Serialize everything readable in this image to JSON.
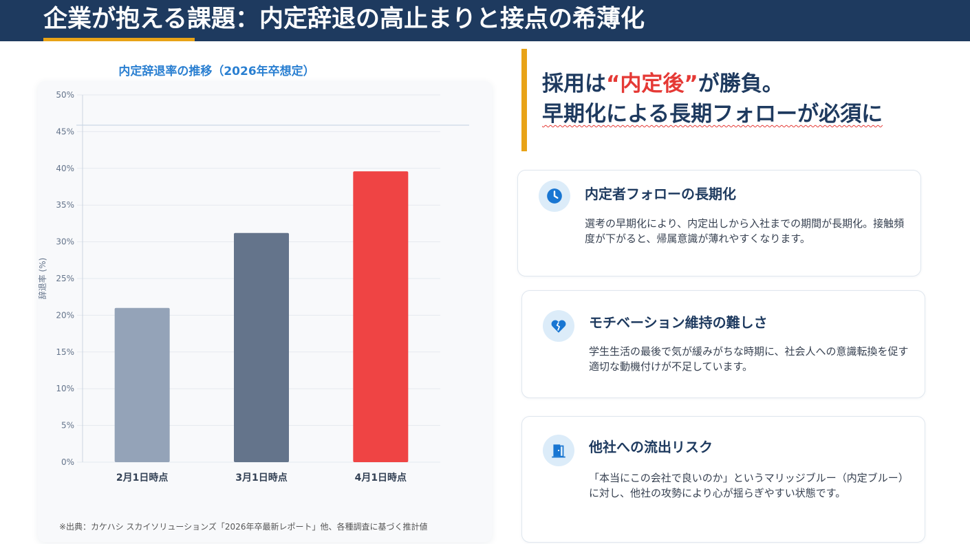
{
  "page_title": "企業が抱える課題：内定辞退の高止まりと接点の希薄化",
  "chart_data": {
    "type": "bar",
    "title": "内定辞退率の推移（2026年卒想定）",
    "xlabel": "",
    "ylabel": "辞退率 (%)",
    "categories": [
      "2月1日時点",
      "3月1日時点",
      "4月1日時点"
    ],
    "values": [
      21,
      31.2,
      39.6
    ],
    "bar_colors": [
      "#94a3b8",
      "#64748b",
      "#ef4444"
    ],
    "ylim": [
      0,
      50
    ],
    "yticks": [
      "0%",
      "5%",
      "10%",
      "15%",
      "20%",
      "25%",
      "30%",
      "35%",
      "40%",
      "45%",
      "50%"
    ],
    "grid": true
  },
  "source_note": "※出典：カケハシ スカイソリューションズ「2026年卒最新レポート」他、各種調査に基づく推計値",
  "headline": {
    "line1_prefix": "採用は",
    "line1_accent": "“内定後”",
    "line1_suffix": "が勝負。",
    "line2": "早期化による長期フォローが必須に"
  },
  "cards": [
    {
      "icon": "clock-icon",
      "title": "内定者フォローの長期化",
      "text": "選考の早期化により、内定出しから入社までの期間が長期化。接触頻度が下がると、帰属意識が薄れやすくなります。"
    },
    {
      "icon": "broken-heart-icon",
      "title": "モチベーション維持の難しさ",
      "text": "学生生活の最後で気が緩みがちな時期に、社会人への意識転換を促す適切な動機付けが不足しています。"
    },
    {
      "icon": "door-exit-icon",
      "title": "他社への流出リスク",
      "text": "「本当にこの会社で良いのか」というマリッジブルー（内定ブルー）に対し、他社の攻勢により心が揺らぎやすい状態です。"
    }
  ],
  "colors": {
    "header_bg": "#1e3a5f",
    "accent_yellow": "#e8a317",
    "accent_red": "#e53935",
    "icon_blue": "#1976d2"
  }
}
